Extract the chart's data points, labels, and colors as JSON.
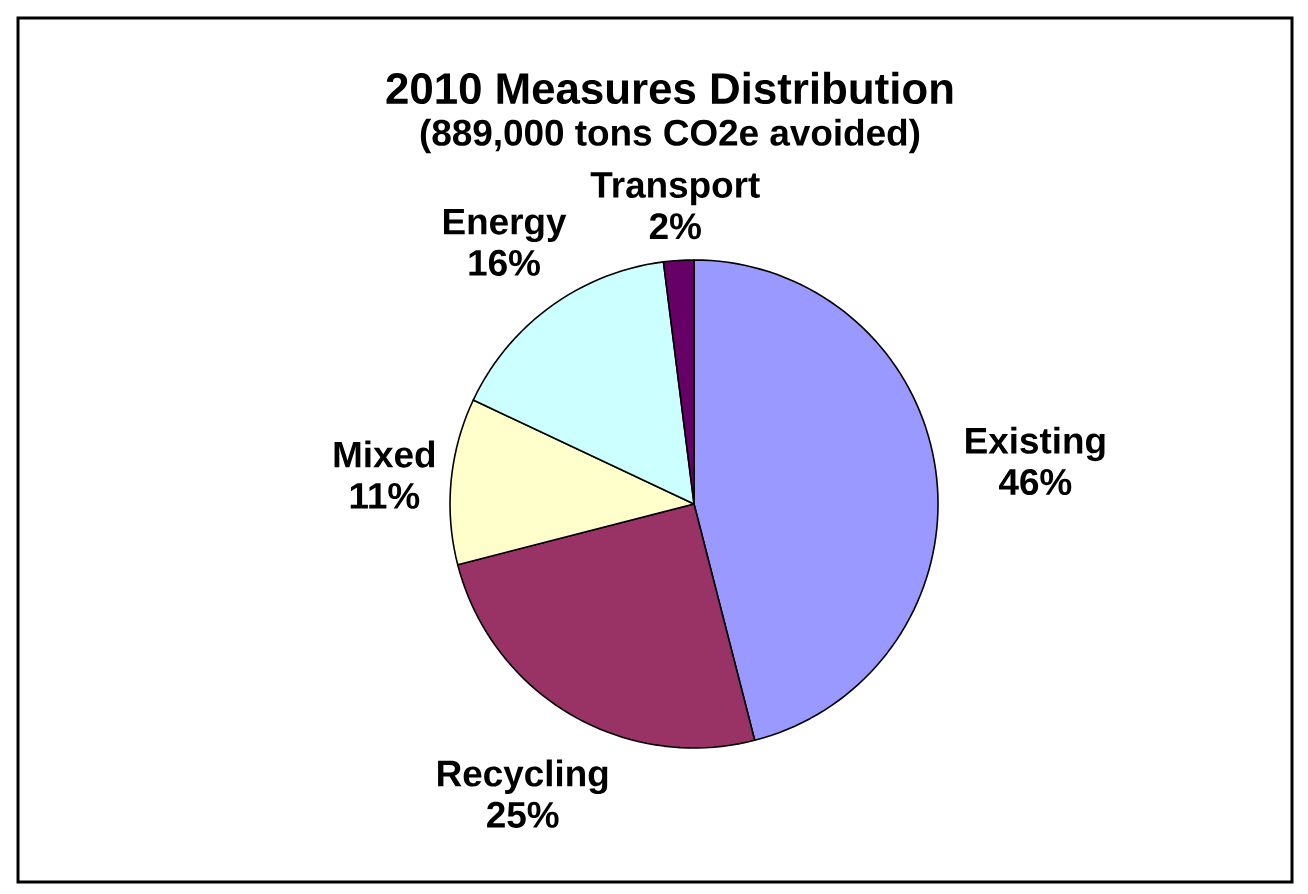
{
  "chart_data": {
    "type": "pie",
    "title": "2010 Measures Distribution",
    "subtitle": "(889,000 tons CO2e avoided)",
    "categories": [
      "Existing",
      "Recycling",
      "Mixed",
      "Energy",
      "Transport"
    ],
    "values": [
      46,
      25,
      11,
      16,
      2
    ],
    "value_labels": [
      "46%",
      "25%",
      "11%",
      "16%",
      "2%"
    ],
    "colors": [
      "#9999ff",
      "#993366",
      "#ffffcc",
      "#ccffff",
      "#660066"
    ]
  }
}
